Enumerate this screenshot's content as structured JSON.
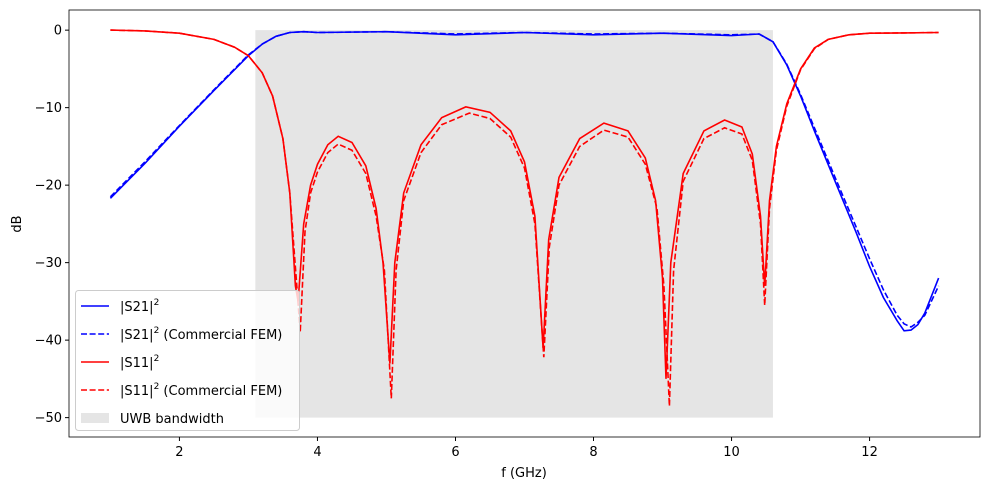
{
  "chart_data": {
    "type": "line",
    "title": "",
    "xlabel": "f (GHz)",
    "ylabel": "dB",
    "xlim": [
      0.4,
      13.6
    ],
    "ylim": [
      -52.5,
      2.6
    ],
    "xticks": [
      2,
      4,
      6,
      8,
      10,
      12
    ],
    "yticks": [
      0,
      -10,
      -20,
      -30,
      -40,
      -50
    ],
    "grid": false,
    "legend": "lower-left",
    "band": {
      "name": "UWB bandwidth",
      "x": [
        3.1,
        10.6
      ],
      "y": [
        -50,
        0
      ],
      "color": "#e5e5e5"
    },
    "series": [
      {
        "name": "|S21|",
        "sup": "2",
        "suffix": "",
        "color": "#0000ff",
        "dash": false,
        "x": [
          1,
          1.5,
          2,
          2.5,
          3,
          3.2,
          3.4,
          3.6,
          3.8,
          4,
          5,
          6,
          7,
          8,
          9,
          10,
          10.4,
          10.6,
          10.8,
          11,
          11.2,
          11.5,
          11.8,
          12,
          12.2,
          12.4,
          12.5,
          12.6,
          12.7,
          12.8,
          13
        ],
        "y": [
          -21.7,
          -17.2,
          -12.4,
          -7.8,
          -3.3,
          -1.8,
          -0.8,
          -0.3,
          -0.2,
          -0.3,
          -0.2,
          -0.6,
          -0.3,
          -0.6,
          -0.4,
          -0.7,
          -0.5,
          -1.5,
          -4.5,
          -8.5,
          -13,
          -19.5,
          -26,
          -30.5,
          -34.5,
          -37.5,
          -38.8,
          -38.7,
          -38,
          -36.5,
          -32
        ]
      },
      {
        "name": "|S21|",
        "sup": "2",
        "suffix": " (Commercial FEM)",
        "color": "#0000ff",
        "dash": true,
        "x": [
          1,
          1.5,
          2,
          2.5,
          3,
          3.2,
          3.4,
          3.6,
          3.8,
          4,
          5,
          6,
          7,
          8,
          9,
          10,
          10.4,
          10.6,
          10.8,
          11,
          11.2,
          11.5,
          11.8,
          12,
          12.2,
          12.4,
          12.5,
          12.6,
          12.7,
          12.8,
          13
        ],
        "y": [
          -21.5,
          -17,
          -12.3,
          -7.7,
          -3.2,
          -1.8,
          -0.8,
          -0.3,
          -0.2,
          -0.3,
          -0.2,
          -0.5,
          -0.3,
          -0.5,
          -0.4,
          -0.6,
          -0.5,
          -1.5,
          -4.4,
          -8.3,
          -12.6,
          -19,
          -25.3,
          -29.5,
          -33.5,
          -36.8,
          -37.9,
          -38.3,
          -37.7,
          -36.8,
          -33
        ]
      },
      {
        "name": "|S11|",
        "sup": "2",
        "suffix": "",
        "color": "#ff0000",
        "dash": false,
        "x": [
          1,
          1.5,
          2,
          2.5,
          2.8,
          3,
          3.2,
          3.35,
          3.5,
          3.6,
          3.68,
          3.72,
          3.8,
          3.9,
          4,
          4.15,
          4.3,
          4.5,
          4.7,
          4.85,
          4.95,
          5.05,
          5.12,
          5.25,
          5.5,
          5.8,
          6.15,
          6.5,
          6.8,
          7,
          7.15,
          7.27,
          7.35,
          7.5,
          7.8,
          8.15,
          8.5,
          8.75,
          8.9,
          9,
          9.05,
          9.12,
          9.3,
          9.6,
          9.9,
          10.15,
          10.3,
          10.42,
          10.48,
          10.55,
          10.65,
          10.8,
          11,
          11.2,
          11.4,
          11.7,
          12,
          12.5,
          13
        ],
        "y": [
          0,
          -0.1,
          -0.4,
          -1.2,
          -2.2,
          -3.3,
          -5.5,
          -8.5,
          -14,
          -21,
          -33,
          -35,
          -25,
          -20,
          -17.3,
          -14.8,
          -13.7,
          -14.5,
          -17.5,
          -23,
          -30,
          -43,
          -30,
          -21,
          -14.8,
          -11.3,
          -9.9,
          -10.6,
          -13,
          -17,
          -24,
          -41,
          -27,
          -19,
          -14,
          -12,
          -13,
          -16.5,
          -22,
          -32,
          -45,
          -30,
          -18.5,
          -13,
          -11.6,
          -12.5,
          -16,
          -24,
          -33,
          -22,
          -15,
          -9.5,
          -5,
          -2.3,
          -1.2,
          -0.6,
          -0.4,
          -0.35,
          -0.3
        ]
      },
      {
        "name": "|S11|",
        "sup": "2",
        "suffix": " (Commercial FEM)",
        "color": "#ff0000",
        "dash": true,
        "x": [
          1,
          1.5,
          2,
          2.5,
          2.8,
          3,
          3.2,
          3.35,
          3.5,
          3.6,
          3.7,
          3.75,
          3.82,
          3.9,
          4,
          4.15,
          4.3,
          4.5,
          4.7,
          4.85,
          4.97,
          5.07,
          5.14,
          5.25,
          5.5,
          5.8,
          6.2,
          6.5,
          6.8,
          7,
          7.15,
          7.28,
          7.36,
          7.5,
          7.8,
          8.15,
          8.5,
          8.75,
          8.92,
          9.02,
          9.1,
          9.16,
          9.3,
          9.6,
          9.9,
          10.15,
          10.3,
          10.42,
          10.48,
          10.55,
          10.65,
          10.8,
          11,
          11.2,
          11.4,
          11.7,
          12,
          12.5,
          13
        ],
        "y": [
          0,
          -0.1,
          -0.4,
          -1.2,
          -2.2,
          -3.3,
          -5.5,
          -8.5,
          -14,
          -21,
          -33,
          -39,
          -26,
          -21,
          -18.3,
          -15.8,
          -14.7,
          -15.5,
          -18.5,
          -24,
          -31,
          -47.5,
          -31,
          -22,
          -15.8,
          -12.2,
          -10.7,
          -11.4,
          -13.8,
          -17.8,
          -25,
          -42.2,
          -28,
          -20,
          -15,
          -12.9,
          -13.8,
          -17.3,
          -23,
          -33,
          -48.5,
          -31,
          -19.5,
          -14,
          -12.6,
          -13.4,
          -16.8,
          -25,
          -35.5,
          -23,
          -15.5,
          -9.8,
          -5.1,
          -2.4,
          -1.2,
          -0.6,
          -0.4,
          -0.35,
          -0.3
        ]
      }
    ]
  }
}
